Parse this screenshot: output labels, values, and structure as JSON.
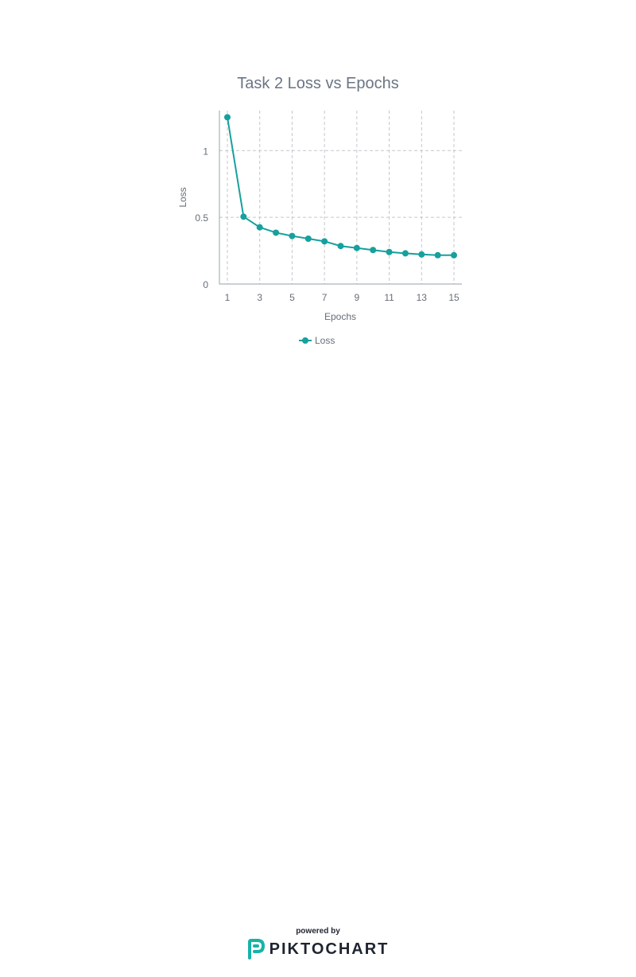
{
  "chart_data": {
    "type": "line",
    "title": "Task 2 Loss vs Epochs",
    "xlabel": "Epochs",
    "ylabel": "Loss",
    "x": [
      1,
      2,
      3,
      4,
      5,
      6,
      7,
      8,
      9,
      10,
      11,
      12,
      13,
      14,
      15
    ],
    "x_ticks": [
      "1",
      "3",
      "5",
      "7",
      "9",
      "11",
      "13",
      "15"
    ],
    "x_tick_values": [
      1,
      3,
      5,
      7,
      9,
      11,
      13,
      15
    ],
    "y_ticks": [
      "0",
      "0.5",
      "1"
    ],
    "y_tick_values": [
      0,
      0.5,
      1
    ],
    "xlim": [
      0.5,
      15.5
    ],
    "ylim": [
      0,
      1.3
    ],
    "grid": true,
    "legend_position": "bottom",
    "series": [
      {
        "name": "Loss",
        "color": "#16a09e",
        "values": [
          1.25,
          0.505,
          0.425,
          0.385,
          0.36,
          0.34,
          0.32,
          0.285,
          0.27,
          0.255,
          0.24,
          0.23,
          0.222,
          0.216,
          0.216
        ]
      }
    ]
  },
  "footer": {
    "powered_by": "powered by",
    "brand": "PIKTOCHART",
    "logo_icon": "piktochart-logo-icon"
  }
}
